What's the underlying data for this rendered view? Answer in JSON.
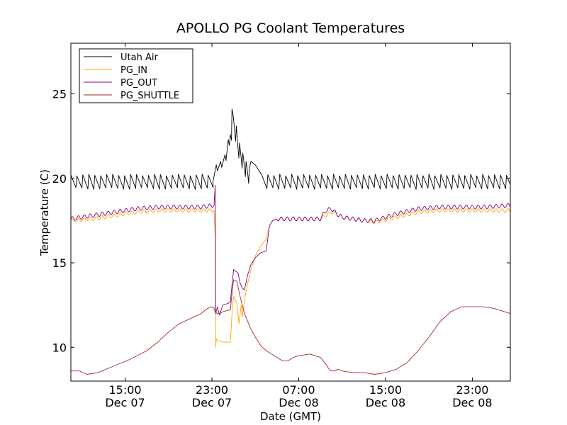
{
  "chart_data": {
    "type": "line",
    "title": "APOLLO PG Coolant Temperatures",
    "xlabel": "Date (GMT)",
    "ylabel": "Temperature (C)",
    "x_unit": "hours since 2013-12-07 10:00 GMT",
    "xlim": [
      0,
      40.5
    ],
    "ylim": [
      8,
      28
    ],
    "yticks": [
      10,
      15,
      20,
      25
    ],
    "xticks": [
      {
        "x": 5,
        "time": "15:00",
        "date": "Dec 07"
      },
      {
        "x": 13,
        "time": "23:00",
        "date": "Dec 07"
      },
      {
        "x": 21,
        "time": "07:00",
        "date": "Dec 08"
      },
      {
        "x": 29,
        "time": "15:00",
        "date": "Dec 08"
      },
      {
        "x": 37,
        "time": "23:00",
        "date": "Dec 08"
      }
    ],
    "grid": false,
    "legend_position": "top-left",
    "series": [
      {
        "name": "Utah Air",
        "color": "#000000",
        "style": "sawtooth",
        "sawtooth_period": 0.55,
        "sawtooth_amplitude": [
          19.4,
          20.2
        ],
        "x": [
          0,
          13.1,
          13.4,
          13.8,
          14.2,
          14.5,
          14.7,
          14.85,
          15.1,
          15.4,
          15.7,
          16.0,
          16.3,
          16.6,
          17.0,
          17.4,
          17.9,
          40.5
        ],
        "y": [
          19.8,
          19.8,
          20.8,
          21.0,
          21.4,
          22.3,
          22.6,
          24.1,
          22.8,
          21.8,
          21.2,
          20.7,
          20.3,
          21.0,
          20.8,
          20.4,
          19.4,
          19.8
        ]
      },
      {
        "name": "PG_IN",
        "color": "#ffa500",
        "style": "ripple",
        "x": [
          0,
          2,
          4,
          6,
          8,
          10,
          12,
          13.2,
          13.3,
          13.35,
          13.4,
          13.5,
          14,
          14.5,
          14.7,
          14.9,
          15.0,
          15.3,
          15.5,
          15.7,
          15.8,
          16.0,
          16.3,
          16.6,
          17.0,
          17.5,
          18.0,
          18.3,
          18.6,
          19.0,
          20,
          21,
          22,
          23,
          23.5,
          24,
          24.5,
          25,
          26,
          27,
          28,
          30,
          32,
          34,
          36,
          38,
          40.5
        ],
        "y": [
          17.5,
          17.6,
          17.8,
          18.0,
          18.1,
          18.1,
          18.1,
          18.1,
          16.5,
          10.0,
          10.5,
          10.4,
          10.3,
          10.3,
          10.3,
          12.5,
          13.0,
          12.6,
          11.4,
          12.5,
          11.8,
          12.8,
          13.8,
          14.6,
          15.4,
          16.0,
          16.4,
          17.2,
          17.5,
          17.6,
          17.6,
          17.6,
          17.6,
          17.6,
          17.8,
          18.0,
          17.9,
          17.7,
          17.6,
          17.5,
          17.4,
          17.7,
          18.0,
          18.1,
          18.1,
          18.1,
          18.1
        ],
        "ripple_amplitude": 0.1
      },
      {
        "name": "PG_OUT",
        "color": "#800080",
        "style": "ripple",
        "x": [
          0,
          2,
          4,
          6,
          8,
          10,
          12,
          13.2,
          13.3,
          13.35,
          13.5,
          13.7,
          14,
          14.5,
          14.7,
          14.9,
          15.0,
          15.2,
          15.4,
          15.6,
          15.8,
          16.0,
          16.3,
          16.6,
          17.0,
          17.5,
          18.0,
          18.3,
          18.6,
          19.0,
          20,
          21,
          22,
          23,
          23.5,
          24,
          24.5,
          25,
          26,
          27,
          28,
          30,
          32,
          34,
          36,
          38,
          40.5
        ],
        "y": [
          17.6,
          17.8,
          18.0,
          18.2,
          18.3,
          18.3,
          18.3,
          18.4,
          19.6,
          12.0,
          12.4,
          11.9,
          12.5,
          12.6,
          12.7,
          14.0,
          14.6,
          14.5,
          14.4,
          13.8,
          13.5,
          13.4,
          14.3,
          14.9,
          15.3,
          15.6,
          15.7,
          17.2,
          17.5,
          17.6,
          17.6,
          17.6,
          17.6,
          17.6,
          18.1,
          18.2,
          17.9,
          17.7,
          17.6,
          17.5,
          17.5,
          17.9,
          18.2,
          18.3,
          18.3,
          18.3,
          18.4
        ],
        "ripple_amplitude": 0.12
      },
      {
        "name": "PG_SHUTTLE",
        "color": "#a52a2a",
        "style": "smooth",
        "x": [
          0,
          0.8,
          1.5,
          2.5,
          4,
          5.5,
          7,
          8,
          9,
          10,
          11,
          12,
          12.6,
          13.0,
          13.2,
          13.3,
          13.5,
          13.7,
          14.0,
          14.5,
          14.7,
          14.9,
          15.0,
          15.3,
          15.6,
          16.0,
          16.5,
          17.0,
          17.5,
          18.0,
          18.5,
          19.0,
          19.5,
          20.0,
          20.5,
          21.0,
          22.0,
          23.0,
          23.5,
          23.8,
          24.0,
          24.3,
          24.6,
          25.0,
          26.0,
          27.0,
          28.0,
          29.0,
          30.0,
          31.0,
          32.0,
          33.0,
          34.0,
          35.0,
          36.0,
          37.0,
          38.0,
          39.0,
          40.5
        ],
        "y": [
          8.6,
          8.6,
          8.4,
          8.5,
          8.9,
          9.3,
          9.8,
          10.3,
          10.9,
          11.4,
          11.7,
          12.0,
          12.3,
          12.4,
          12.3,
          12.1,
          12.0,
          12.0,
          12.1,
          12.2,
          12.2,
          13.5,
          14.0,
          13.9,
          13.0,
          12.0,
          11.2,
          10.6,
          10.1,
          9.8,
          9.6,
          9.4,
          9.2,
          9.2,
          9.4,
          9.5,
          9.6,
          9.4,
          9.0,
          8.7,
          8.6,
          8.6,
          8.7,
          8.6,
          8.5,
          8.5,
          8.4,
          8.5,
          8.7,
          9.1,
          9.8,
          10.6,
          11.5,
          12.1,
          12.4,
          12.4,
          12.4,
          12.3,
          12.0
        ]
      }
    ]
  }
}
